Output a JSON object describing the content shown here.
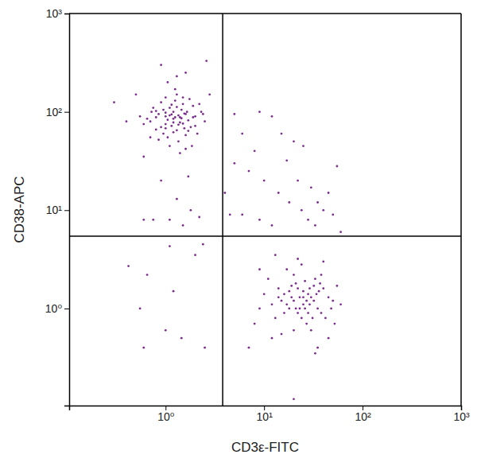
{
  "chart_data": {
    "type": "scatter",
    "x_label": "CD3ε-FITC",
    "y_label": "CD38-APC",
    "color": "#7b2d8e",
    "marker": "circle",
    "log": true,
    "xlim": [
      0.105,
      1000
    ],
    "ylim": [
      0.103,
      1000
    ],
    "xticks": [
      {
        "value": 1,
        "label": "10⁰"
      },
      {
        "value": 10,
        "label": "10¹"
      },
      {
        "value": 100,
        "label": "10²"
      },
      {
        "value": 1000,
        "label": "10³"
      }
    ],
    "yticks": [
      {
        "value": 1,
        "label": "10⁰"
      },
      {
        "value": 10,
        "label": "10¹"
      },
      {
        "value": 100,
        "label": "10²"
      },
      {
        "value": 1000,
        "label": "10³"
      }
    ],
    "quadrant_x": 3.8,
    "quadrant_y": 5.45,
    "x": [
      1.2,
      1.0,
      1.4,
      0.9,
      1.6,
      1.1,
      1.3,
      0.8,
      1.5,
      1.0,
      1.7,
      1.2,
      0.95,
      1.35,
      1.8,
      0.7,
      1.25,
      1.05,
      2.0,
      1.45,
      0.85,
      1.15,
      1.55,
      2.3,
      0.75,
      1.3,
      1.1,
      1.9,
      0.65,
      1.6,
      1.0,
      1.4,
      2.5,
      0.9,
      1.2,
      1.75,
      0.55,
      1.05,
      1.5,
      1.3,
      2.1,
      0.8,
      1.65,
      1.0,
      1.2,
      0.72,
      1.9,
      1.35,
      1.1,
      2.2,
      0.6,
      1.45,
      1.25,
      0.95,
      1.7,
      1.0,
      1.55,
      0.85,
      2.4,
      1.15,
      0.4,
      0.3,
      1.3,
      0.9,
      2.6,
      1.6,
      0.5,
      2.8,
      0.6,
      1.4,
      1.85,
      1.05,
      1.6,
      0.7,
      2.0,
      1.25,
      1.35,
      0.8,
      1.15,
      1.5,
      0.6,
      0.75,
      1.1,
      1.5,
      2.2,
      1.8,
      1.3,
      0.9,
      2.4,
      2.0,
      1.2,
      0.65,
      0.6,
      1.0,
      0.55,
      1.45,
      2.5,
      0.42,
      1.1,
      1.7,
      5,
      6,
      9,
      12,
      8,
      7,
      15,
      20,
      25,
      10,
      14,
      18,
      22,
      30,
      35,
      40,
      28,
      24,
      45,
      55,
      60,
      12,
      9,
      6,
      4.5,
      4,
      17,
      33,
      50,
      5,
      20,
      25,
      30,
      18,
      22,
      28,
      35,
      15,
      40,
      24,
      19,
      32,
      26,
      12,
      45,
      21,
      27,
      16,
      38,
      23,
      29,
      14,
      50,
      20,
      33,
      10,
      17,
      36,
      25,
      13,
      42,
      22,
      31,
      18,
      27,
      9,
      55,
      24,
      38,
      11,
      30,
      20,
      15,
      45,
      35,
      12,
      8,
      60,
      26,
      19,
      23,
      34,
      16,
      29,
      21,
      14,
      48,
      37,
      28,
      32,
      17,
      9,
      22,
      40,
      13,
      33,
      20,
      7,
      52,
      25
    ],
    "values": [
      85,
      90,
      78,
      70,
      95,
      110,
      65,
      88,
      120,
      75,
      82,
      100,
      60,
      92,
      70,
      80,
      130,
      55,
      90,
      105,
      95,
      72,
      68,
      100,
      110,
      150,
      45,
      115,
      85,
      58,
      98,
      88,
      80,
      125,
      62,
      135,
      90,
      83,
      76,
      112,
      60,
      66,
      100,
      140,
      78,
      100,
      88,
      50,
      92,
      120,
      75,
      86,
      170,
      105,
      64,
      68,
      96,
      52,
      95,
      118,
      80,
      125,
      230,
      300,
      330,
      250,
      150,
      150,
      35,
      38,
      45,
      200,
      42,
      55,
      72,
      88,
      74,
      102,
      94,
      140,
      8,
      8,
      8,
      7,
      8.5,
      10,
      13,
      20,
      4.5,
      3.5,
      1.5,
      2.2,
      0.4,
      0.6,
      1.0,
      0.5,
      0.4,
      2.7,
      4.3,
      22,
      95,
      60,
      100,
      90,
      40,
      25,
      60,
      50,
      45,
      20,
      15,
      12,
      20,
      17,
      12,
      10,
      8,
      10,
      15,
      28,
      6,
      7,
      8,
      9,
      9,
      15,
      32,
      7,
      9,
      30,
      1.2,
      1.1,
      1.3,
      1.5,
      0.9,
      1.4,
      1.0,
      1.2,
      1.6,
      0.8,
      1.7,
      1.2,
      1.9,
      1.1,
      1.3,
      1.0,
      0.7,
      0.9,
      0.9,
      1.3,
      1.6,
      1.6,
      1.2,
      2.2,
      2.0,
      1.4,
      2.5,
      1.5,
      1.5,
      0.8,
      0.8,
      1.6,
      0.8,
      1.0,
      1.2,
      1.0,
      1.7,
      2.8,
      2.2,
      2.0,
      0.6,
      0.6,
      0.55,
      0.5,
      0.4,
      0.5,
      0.7,
      1.1,
      1.0,
      1.3,
      1.0,
      1.4,
      1.4,
      1.1,
      1.8,
      1.3,
      1.0,
      1.8,
      0.9,
      1.7,
      1.1,
      2.5,
      3.2,
      3.0,
      3.5,
      0.35,
      0.12,
      0.4,
      0.7,
      1.3
    ]
  }
}
